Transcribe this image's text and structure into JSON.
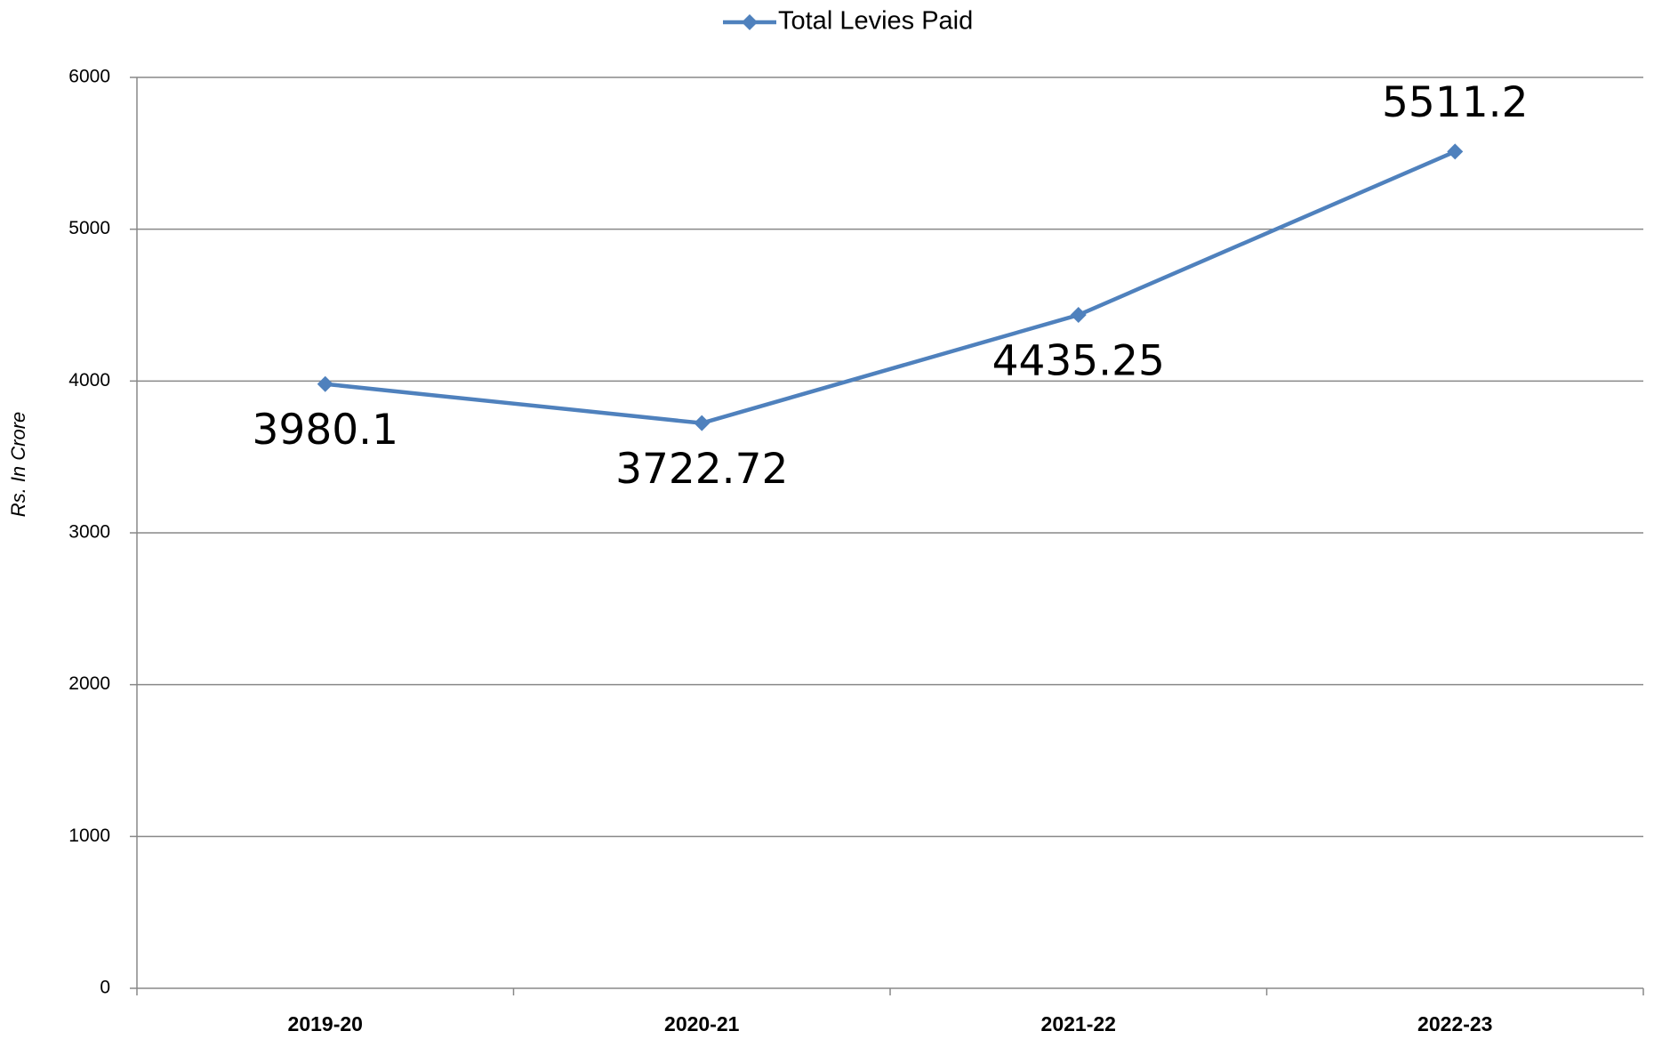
{
  "chart_data": {
    "type": "line",
    "y_label": "Rs. In Crore",
    "categories": [
      "2019-20",
      "2020-21",
      "2021-22",
      "2022-23"
    ],
    "series": [
      {
        "name": "Total Levies Paid",
        "color": "#4f81bd",
        "values": [
          3980.1,
          3722.72,
          4435.25,
          5511.2
        ]
      }
    ],
    "ylim": [
      0,
      6000
    ],
    "yticks": [
      0,
      1000,
      2000,
      3000,
      4000,
      5000,
      6000
    ],
    "grid": true,
    "legend": "top",
    "data_labels": true
  }
}
